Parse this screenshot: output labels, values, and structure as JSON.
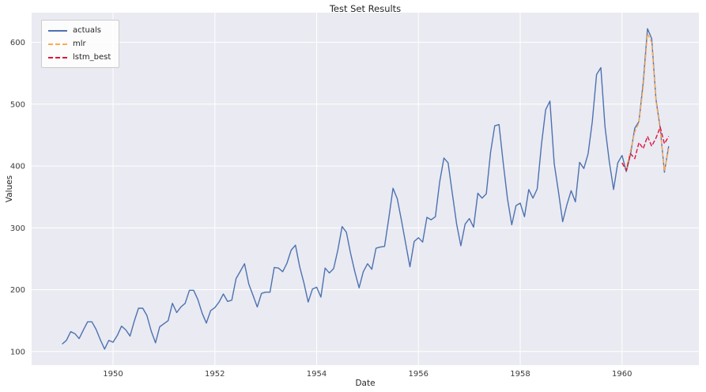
{
  "chart_data": {
    "type": "line",
    "title": "Test Set Results",
    "xlabel": "Date",
    "ylabel": "Values",
    "x_unit": "year",
    "xlim": [
      1948.4,
      1961.51
    ],
    "ylim": [
      78,
      648
    ],
    "xticks": [
      1950,
      1952,
      1954,
      1956,
      1958,
      1960
    ],
    "yticks": [
      100,
      200,
      300,
      400,
      500,
      600
    ],
    "grid": true,
    "grid_color": "#ffffff",
    "plot_background": "#eaeaf2",
    "legend_position": "upper-left",
    "series": [
      {
        "name": "actuals",
        "color": "#4c72b0",
        "style": "solid",
        "x_start": 1949.0,
        "x_step_years": 0.0833333,
        "values": [
          112,
          118,
          132,
          129,
          121,
          135,
          148,
          148,
          136,
          119,
          104,
          118,
          115,
          126,
          141,
          135,
          125,
          149,
          170,
          170,
          158,
          133,
          114,
          140,
          145,
          150,
          178,
          163,
          172,
          178,
          199,
          199,
          184,
          162,
          146,
          166,
          171,
          180,
          193,
          181,
          183,
          218,
          230,
          242,
          209,
          191,
          172,
          194,
          196,
          196,
          236,
          235,
          229,
          243,
          264,
          272,
          237,
          211,
          180,
          201,
          204,
          188,
          235,
          227,
          234,
          264,
          302,
          293,
          259,
          229,
          203,
          229,
          242,
          233,
          267,
          269,
          270,
          315,
          364,
          347,
          312,
          274,
          237,
          278,
          284,
          277,
          317,
          313,
          318,
          374,
          413,
          405,
          355,
          306,
          271,
          306,
          315,
          301,
          356,
          348,
          355,
          422,
          465,
          467,
          404,
          347,
          305,
          336,
          340,
          318,
          362,
          348,
          363,
          435,
          491,
          505,
          404,
          359,
          310,
          337,
          360,
          342,
          406,
          396,
          420,
          472,
          548,
          559,
          463,
          407,
          362,
          405,
          417,
          391,
          419,
          461,
          472,
          535,
          622,
          606,
          508,
          461,
          390,
          432
        ]
      },
      {
        "name": "mlr",
        "color": "#ffaa4f",
        "style": "dashed",
        "x_start": 1960.0,
        "x_step_years": 0.0833333,
        "values": [
          405,
          395,
          425,
          455,
          470,
          528,
          614,
          600,
          505,
          458,
          392,
          428
        ]
      },
      {
        "name": "lstm_best",
        "color": "#dc143c",
        "style": "dashed",
        "x_start": 1960.0,
        "x_step_years": 0.0833333,
        "values": [
          405,
          393,
          420,
          412,
          438,
          428,
          448,
          432,
          445,
          463,
          436,
          448
        ]
      }
    ]
  }
}
